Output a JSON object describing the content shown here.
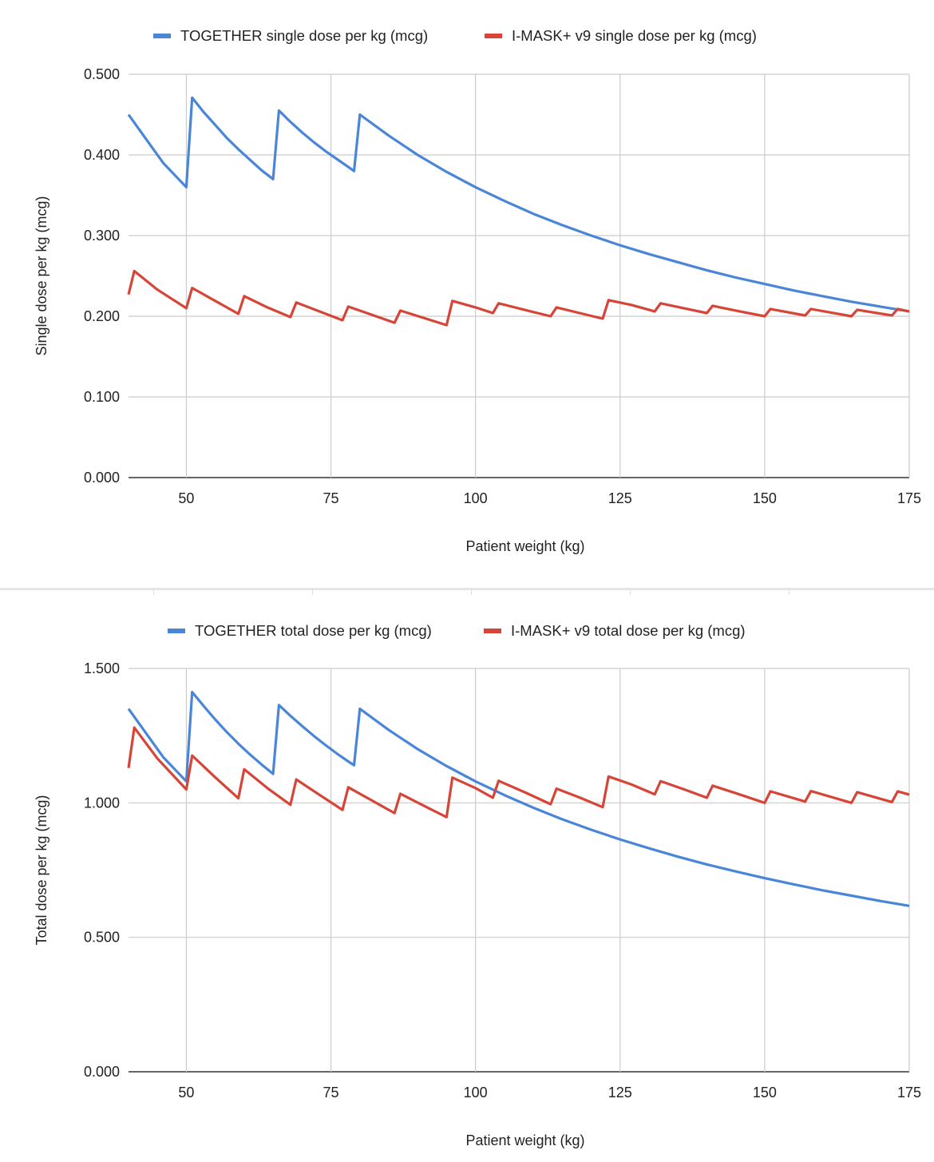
{
  "chart_data": [
    {
      "type": "line",
      "xlabel": "Patient weight (kg)",
      "ylabel": "Single dose per kg (mcg)",
      "xlim": [
        40,
        175
      ],
      "ylim": [
        0,
        0.5
      ],
      "x_ticks": [
        "50",
        "75",
        "100",
        "125",
        "150",
        "175"
      ],
      "y_ticks": [
        "0.000",
        "0.100",
        "0.200",
        "0.300",
        "0.400",
        "0.500"
      ],
      "grid": true,
      "legend_position": "top",
      "series": [
        {
          "name": "TOGETHER single dose per kg (mcg)",
          "color": "#4a86d8",
          "points": [
            [
              40,
              0.45
            ],
            [
              42,
              0.43
            ],
            [
              44,
              0.41
            ],
            [
              46,
              0.39
            ],
            [
              48,
              0.375
            ],
            [
              50,
              0.36
            ],
            [
              51,
              0.471
            ],
            [
              53,
              0.453
            ],
            [
              55,
              0.437
            ],
            [
              57,
              0.421
            ],
            [
              59,
              0.407
            ],
            [
              61,
              0.394
            ],
            [
              63,
              0.381
            ],
            [
              65,
              0.37
            ],
            [
              66,
              0.455
            ],
            [
              68,
              0.441
            ],
            [
              70,
              0.428
            ],
            [
              72,
              0.416
            ],
            [
              74,
              0.405
            ],
            [
              76,
              0.395
            ],
            [
              78,
              0.385
            ],
            [
              79,
              0.38
            ],
            [
              80,
              0.45
            ],
            [
              85,
              0.424
            ],
            [
              90,
              0.4
            ],
            [
              95,
              0.379
            ],
            [
              100,
              0.36
            ],
            [
              105,
              0.343
            ],
            [
              110,
              0.327
            ],
            [
              115,
              0.313
            ],
            [
              120,
              0.3
            ],
            [
              125,
              0.288
            ],
            [
              130,
              0.277
            ],
            [
              135,
              0.267
            ],
            [
              140,
              0.257
            ],
            [
              145,
              0.248
            ],
            [
              150,
              0.24
            ],
            [
              155,
              0.232
            ],
            [
              160,
              0.225
            ],
            [
              165,
              0.218
            ],
            [
              170,
              0.212
            ],
            [
              175,
              0.206
            ]
          ]
        },
        {
          "name": "I-MASK+ v9 single dose per kg (mcg)",
          "color": "#d64537",
          "points": [
            [
              40,
              0.227
            ],
            [
              41,
              0.256
            ],
            [
              45,
              0.233
            ],
            [
              50,
              0.21
            ],
            [
              51,
              0.235
            ],
            [
              55,
              0.219
            ],
            [
              59,
              0.203
            ],
            [
              60,
              0.225
            ],
            [
              64,
              0.211
            ],
            [
              68,
              0.199
            ],
            [
              69,
              0.217
            ],
            [
              73,
              0.206
            ],
            [
              77,
              0.195
            ],
            [
              78,
              0.212
            ],
            [
              82,
              0.202
            ],
            [
              86,
              0.192
            ],
            [
              87,
              0.207
            ],
            [
              91,
              0.198
            ],
            [
              95,
              0.189
            ],
            [
              96,
              0.219
            ],
            [
              100,
              0.211
            ],
            [
              103,
              0.204
            ],
            [
              104,
              0.216
            ],
            [
              109,
              0.207
            ],
            [
              113,
              0.2
            ],
            [
              114,
              0.211
            ],
            [
              118,
              0.204
            ],
            [
              122,
              0.197
            ],
            [
              123,
              0.22
            ],
            [
              127,
              0.214
            ],
            [
              131,
              0.206
            ],
            [
              132,
              0.216
            ],
            [
              136,
              0.21
            ],
            [
              140,
              0.204
            ],
            [
              141,
              0.213
            ],
            [
              145,
              0.207
            ],
            [
              150,
              0.2
            ],
            [
              151,
              0.209
            ],
            [
              157,
              0.201
            ],
            [
              158,
              0.209
            ],
            [
              165,
              0.2
            ],
            [
              166,
              0.208
            ],
            [
              172,
              0.201
            ],
            [
              173,
              0.209
            ],
            [
              175,
              0.206
            ]
          ]
        }
      ]
    },
    {
      "type": "line",
      "xlabel": "Patient weight (kg)",
      "ylabel": "Total dose per kg (mcg)",
      "xlim": [
        40,
        175
      ],
      "ylim": [
        0,
        1.5
      ],
      "x_ticks": [
        "50",
        "75",
        "100",
        "125",
        "150",
        "175"
      ],
      "y_ticks": [
        "0.000",
        "0.500",
        "1.000",
        "1.500"
      ],
      "grid": true,
      "legend_position": "top",
      "series": [
        {
          "name": "TOGETHER total dose per kg (mcg)",
          "color": "#4a86d8",
          "points": [
            [
              40,
              1.35
            ],
            [
              42,
              1.29
            ],
            [
              44,
              1.23
            ],
            [
              46,
              1.17
            ],
            [
              48,
              1.125
            ],
            [
              50,
              1.08
            ],
            [
              51,
              1.412
            ],
            [
              53,
              1.36
            ],
            [
              55,
              1.31
            ],
            [
              57,
              1.263
            ],
            [
              59,
              1.22
            ],
            [
              61,
              1.18
            ],
            [
              63,
              1.143
            ],
            [
              65,
              1.108
            ],
            [
              66,
              1.364
            ],
            [
              68,
              1.324
            ],
            [
              70,
              1.286
            ],
            [
              72,
              1.25
            ],
            [
              74,
              1.216
            ],
            [
              76,
              1.184
            ],
            [
              78,
              1.154
            ],
            [
              79,
              1.14
            ],
            [
              80,
              1.35
            ],
            [
              85,
              1.271
            ],
            [
              90,
              1.2
            ],
            [
              95,
              1.137
            ],
            [
              100,
              1.08
            ],
            [
              105,
              1.029
            ],
            [
              110,
              0.982
            ],
            [
              115,
              0.939
            ],
            [
              120,
              0.9
            ],
            [
              125,
              0.864
            ],
            [
              130,
              0.831
            ],
            [
              135,
              0.8
            ],
            [
              140,
              0.771
            ],
            [
              145,
              0.745
            ],
            [
              150,
              0.72
            ],
            [
              155,
              0.697
            ],
            [
              160,
              0.675
            ],
            [
              165,
              0.655
            ],
            [
              170,
              0.635
            ],
            [
              175,
              0.617
            ]
          ]
        },
        {
          "name": "I-MASK+ v9 total dose per kg (mcg)",
          "color": "#d64537",
          "points": [
            [
              40,
              1.13
            ],
            [
              41,
              1.28
            ],
            [
              45,
              1.165
            ],
            [
              50,
              1.05
            ],
            [
              51,
              1.176
            ],
            [
              55,
              1.095
            ],
            [
              59,
              1.017
            ],
            [
              60,
              1.125
            ],
            [
              64,
              1.055
            ],
            [
              68,
              0.993
            ],
            [
              69,
              1.087
            ],
            [
              73,
              1.03
            ],
            [
              77,
              0.974
            ],
            [
              78,
              1.058
            ],
            [
              82,
              1.01
            ],
            [
              86,
              0.962
            ],
            [
              87,
              1.034
            ],
            [
              91,
              0.99
            ],
            [
              95,
              0.947
            ],
            [
              96,
              1.094
            ],
            [
              100,
              1.055
            ],
            [
              103,
              1.019
            ],
            [
              104,
              1.082
            ],
            [
              109,
              1.035
            ],
            [
              113,
              0.995
            ],
            [
              114,
              1.053
            ],
            [
              118,
              1.02
            ],
            [
              122,
              0.984
            ],
            [
              123,
              1.098
            ],
            [
              127,
              1.068
            ],
            [
              131,
              1.032
            ],
            [
              132,
              1.081
            ],
            [
              136,
              1.051
            ],
            [
              140,
              1.019
            ],
            [
              141,
              1.064
            ],
            [
              145,
              1.036
            ],
            [
              150,
              1.0
            ],
            [
              151,
              1.043
            ],
            [
              157,
              1.005
            ],
            [
              158,
              1.044
            ],
            [
              165,
              1.0
            ],
            [
              166,
              1.04
            ],
            [
              172,
              1.003
            ],
            [
              173,
              1.043
            ],
            [
              175,
              1.031
            ]
          ]
        }
      ]
    }
  ]
}
